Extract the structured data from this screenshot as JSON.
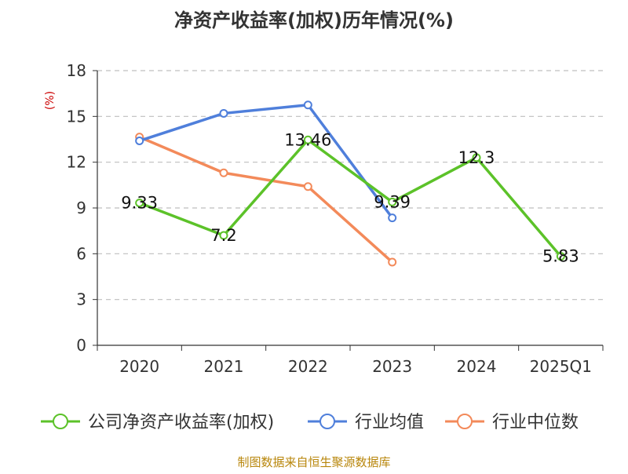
{
  "chart_data": {
    "type": "line",
    "title": "净资产收益率(加权)历年情况(%)",
    "ylabel": "(%)",
    "xlabel": "",
    "categories": [
      "2020",
      "2021",
      "2022",
      "2023",
      "2024",
      "2025Q1"
    ],
    "y_ticks": [
      0,
      3,
      6,
      9,
      12,
      15,
      18
    ],
    "ylim": [
      0,
      18
    ],
    "grid": true,
    "legend_position": "bottom",
    "series": [
      {
        "name": "公司净资产收益率(加权)",
        "color": "#5cc229",
        "values": [
          9.33,
          7.2,
          13.46,
          9.39,
          12.3,
          5.83
        ],
        "data_labels": [
          "9.33",
          "7.2",
          "13.46",
          "9.39",
          "12.3",
          "5.83"
        ]
      },
      {
        "name": "行业均值",
        "color": "#4f7fdb",
        "values": [
          13.4,
          15.2,
          15.75,
          8.35,
          null,
          null
        ]
      },
      {
        "name": "行业中位数",
        "color": "#f38a5a",
        "values": [
          13.65,
          11.3,
          10.4,
          5.45,
          null,
          null
        ]
      }
    ]
  },
  "source_note": "制图数据来自恒生聚源数据库",
  "colors": {
    "title": "#333333",
    "axis": "#333333",
    "grid": "#bfbfbf",
    "ylabel": "#cc0000",
    "source": "#b8860b"
  }
}
